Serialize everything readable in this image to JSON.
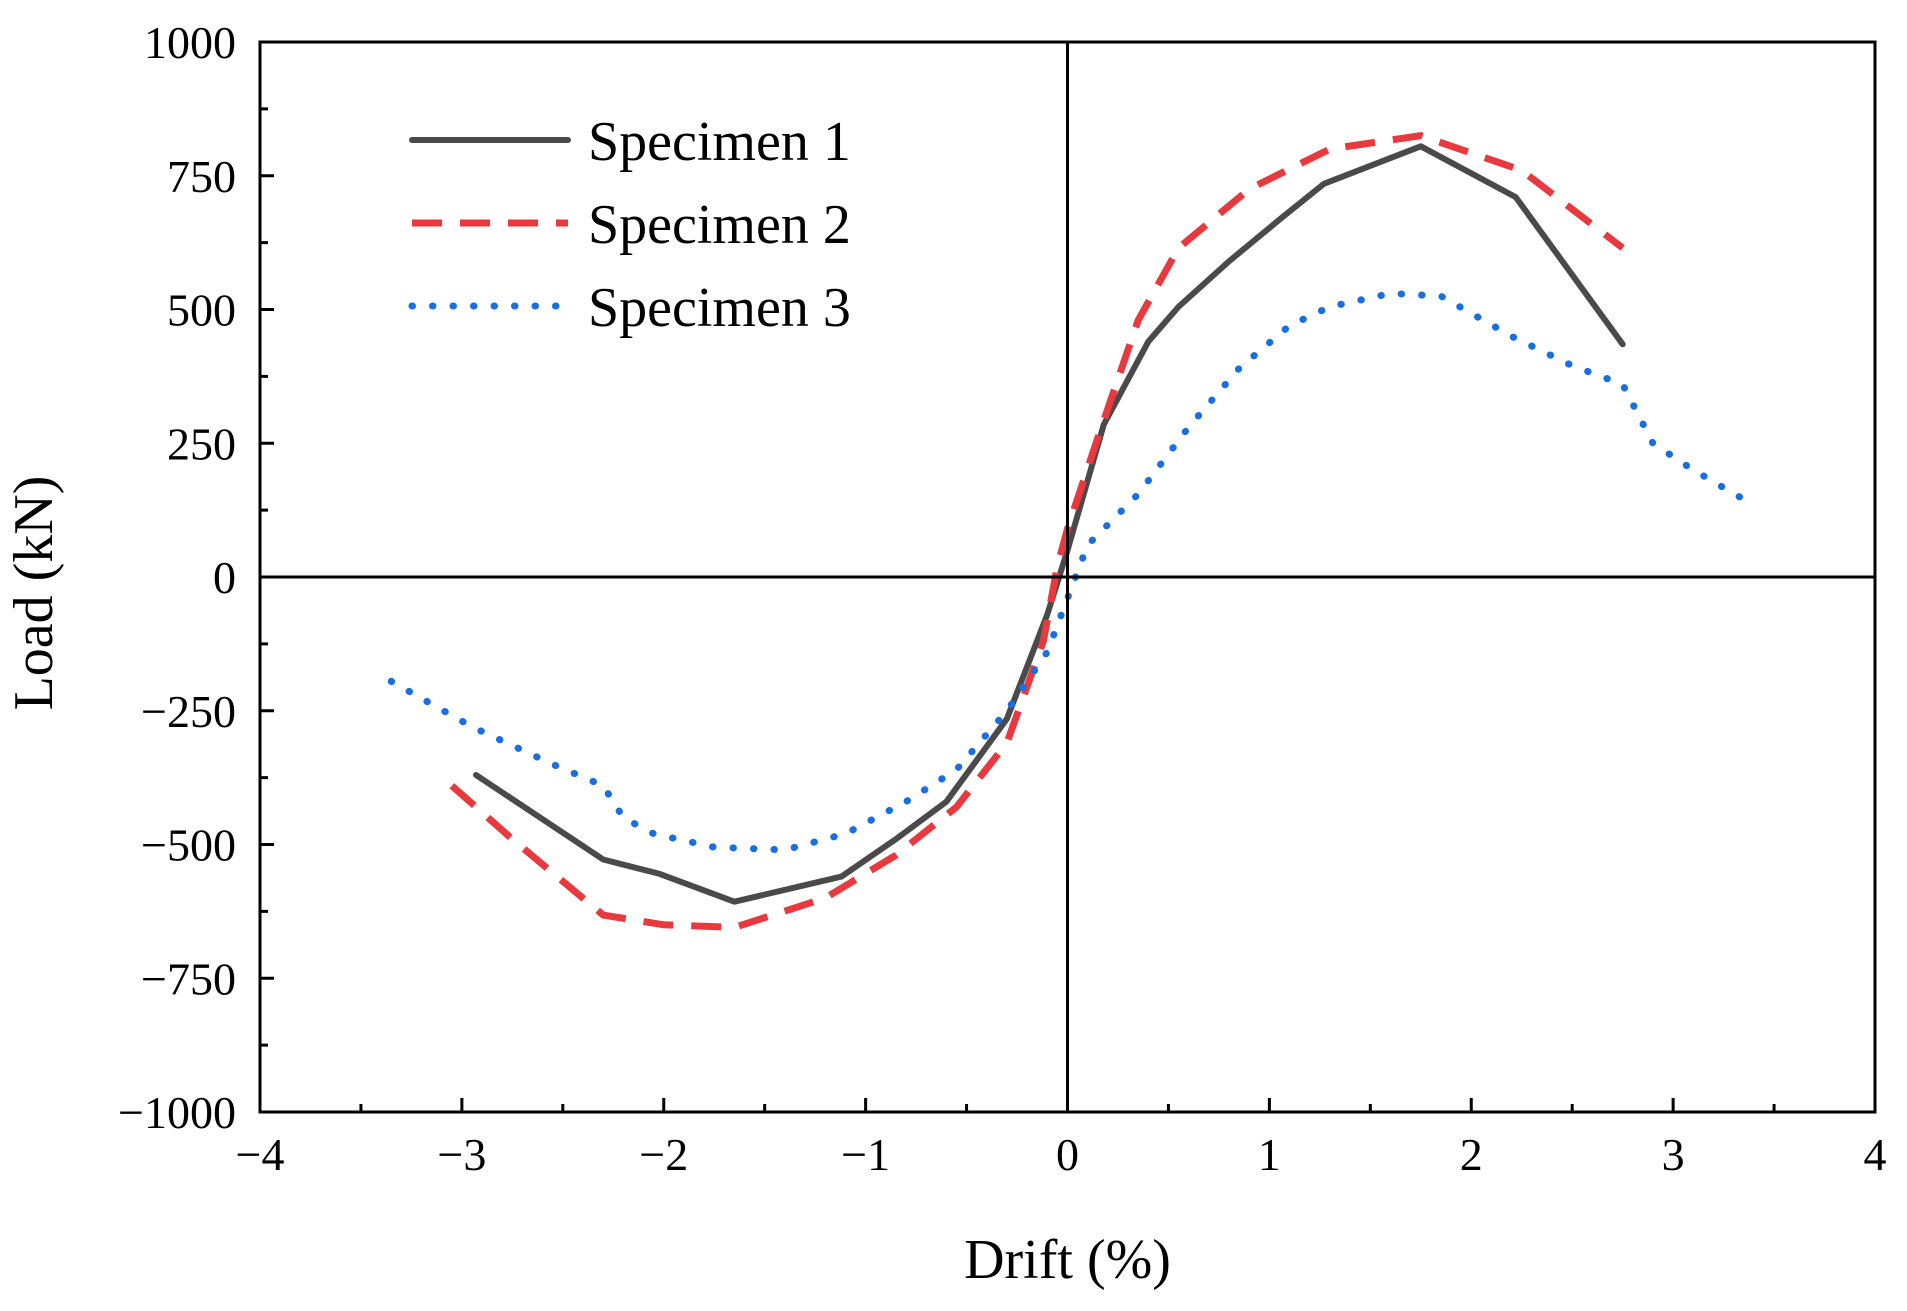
{
  "chart_data": {
    "type": "line",
    "xlabel": "Drift (%)",
    "ylabel": "Load (kN)",
    "xlim": [
      -4,
      4
    ],
    "ylim": [
      -1000,
      1000
    ],
    "xticks": [
      -4,
      -3,
      -2,
      -1,
      0,
      1,
      2,
      3,
      4
    ],
    "xtick_labels": [
      "−4",
      "−3",
      "−2",
      "−1",
      "0",
      "1",
      "2",
      "3",
      "4"
    ],
    "yticks": [
      -1000,
      -750,
      -500,
      -250,
      0,
      250,
      500,
      750,
      1000
    ],
    "ytick_labels": [
      "−1000",
      "−750",
      "−500",
      "−250",
      "0",
      "250",
      "500",
      "750",
      "1000"
    ],
    "legend_position": "top-left",
    "zero_lines": true,
    "grid": false,
    "series": [
      {
        "name": "Specimen 1",
        "color": "#4a4a4a",
        "style": "solid",
        "x": [
          -2.93,
          -2.3,
          -2.02,
          -1.65,
          -1.12,
          -0.85,
          -0.6,
          -0.3,
          -0.1,
          0.0,
          0.18,
          0.4,
          0.55,
          0.8,
          1.05,
          1.27,
          1.75,
          2.22,
          2.75
        ],
        "y": [
          -370,
          -528,
          -555,
          -607,
          -560,
          -490,
          -420,
          -265,
          -70,
          50,
          285,
          440,
          505,
          590,
          668,
          735,
          805,
          710,
          435
        ]
      },
      {
        "name": "Specimen 2",
        "color": "#e8393e",
        "style": "dashed",
        "x": [
          -3.05,
          -2.75,
          -2.3,
          -2.0,
          -1.65,
          -1.2,
          -0.85,
          -0.55,
          -0.3,
          -0.12,
          -0.05,
          0.0,
          0.15,
          0.35,
          0.55,
          0.9,
          1.3,
          1.75,
          2.25,
          2.75
        ],
        "y": [
          -390,
          -490,
          -632,
          -650,
          -655,
          -600,
          -520,
          -430,
          -310,
          -120,
          20,
          90,
          260,
          480,
          615,
          725,
          800,
          825,
          760,
          615
        ]
      },
      {
        "name": "Specimen 3",
        "color": "#1a6fe0",
        "style": "dotted",
        "x": [
          -3.35,
          -2.95,
          -2.55,
          -2.3,
          -2.2,
          -2.05,
          -1.75,
          -1.4,
          -1.1,
          -0.8,
          -0.55,
          -0.3,
          -0.1,
          0.0,
          0.1,
          0.35,
          0.6,
          0.85,
          1.1,
          1.3,
          1.6,
          1.85,
          2.2,
          2.5,
          2.75,
          2.9,
          3.1,
          3.35
        ],
        "y": [
          -195,
          -280,
          -350,
          -390,
          -450,
          -480,
          -505,
          -510,
          -480,
          -420,
          -360,
          -250,
          -140,
          -40,
          60,
          155,
          280,
          390,
          470,
          505,
          530,
          525,
          450,
          395,
          360,
          250,
          200,
          145
        ]
      }
    ]
  }
}
